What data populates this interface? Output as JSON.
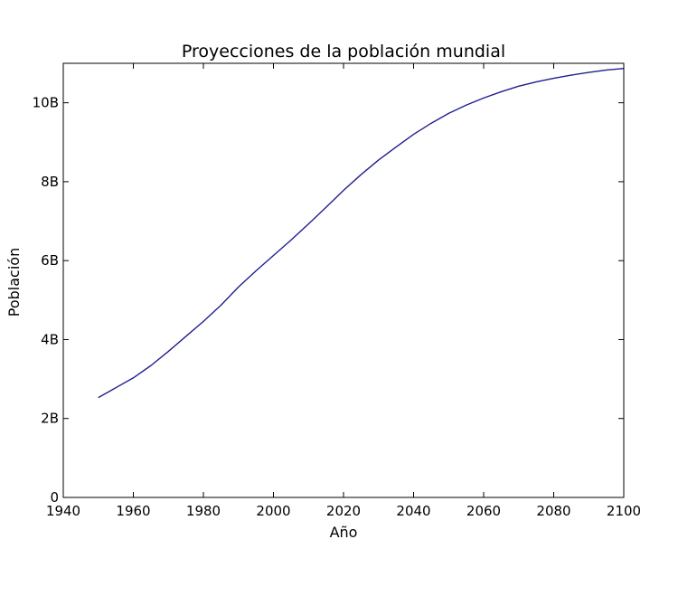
{
  "chart_data": {
    "type": "line",
    "title": "Proyecciones de la población mundial",
    "xlabel": "Año",
    "ylabel": "Población",
    "xlim": [
      1940,
      2100
    ],
    "ylim": [
      0,
      11000000000
    ],
    "x_ticks": [
      1940,
      1960,
      1980,
      2000,
      2020,
      2040,
      2060,
      2080,
      2100
    ],
    "x_tick_labels": [
      "1940",
      "1960",
      "1980",
      "2000",
      "2020",
      "2040",
      "2060",
      "2080",
      "2100"
    ],
    "y_ticks": [
      0,
      2000000000,
      4000000000,
      6000000000,
      8000000000,
      10000000000
    ],
    "y_tick_labels": [
      "0",
      "2B",
      "4B",
      "6B",
      "8B",
      "10B"
    ],
    "grid": false,
    "line_color": "#1f1f8f",
    "series": [
      {
        "x": [
          1950,
          1955,
          1960,
          1965,
          1970,
          1975,
          1980,
          1985,
          1990,
          1995,
          2000,
          2005,
          2010,
          2015,
          2020,
          2025,
          2030,
          2035,
          2040,
          2045,
          2050,
          2055,
          2060,
          2065,
          2070,
          2075,
          2080,
          2085,
          2090,
          2095,
          2100
        ],
        "y": [
          2530000000,
          2780000000,
          3030000000,
          3340000000,
          3700000000,
          4080000000,
          4460000000,
          4870000000,
          5330000000,
          5740000000,
          6130000000,
          6520000000,
          6930000000,
          7350000000,
          7780000000,
          8180000000,
          8550000000,
          8880000000,
          9200000000,
          9480000000,
          9730000000,
          9940000000,
          10120000000,
          10280000000,
          10420000000,
          10530000000,
          10620000000,
          10700000000,
          10770000000,
          10830000000,
          10870000000
        ]
      }
    ]
  }
}
